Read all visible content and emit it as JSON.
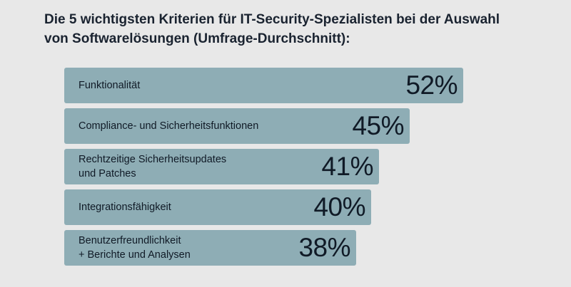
{
  "chart_data": {
    "type": "bar",
    "orientation": "horizontal",
    "title": "Die 5 wichtigsten Kriterien für IT-Security-Spezialisten bei der Auswahl\nvon Softwarelösungen (Umfrage-Durchschnitt):",
    "categories": [
      "Funktionalität",
      "Compliance- und Sicherheitsfunktionen",
      "Rechtzeitige Sicherheitsupdates\nund Patches",
      "Integrationsfähigkeit",
      "Benutzerfreundlichkeit\n+ Berichte und Analysen"
    ],
    "values": [
      52,
      45,
      41,
      40,
      38
    ],
    "value_labels": [
      "52%",
      "45%",
      "41%",
      "40%",
      "38%"
    ],
    "unit": "%",
    "xlim": [
      0,
      52
    ],
    "grid": false,
    "colors": {
      "bar": "#8eadb5",
      "background": "#e8e8e8",
      "text": "#101a26"
    }
  }
}
